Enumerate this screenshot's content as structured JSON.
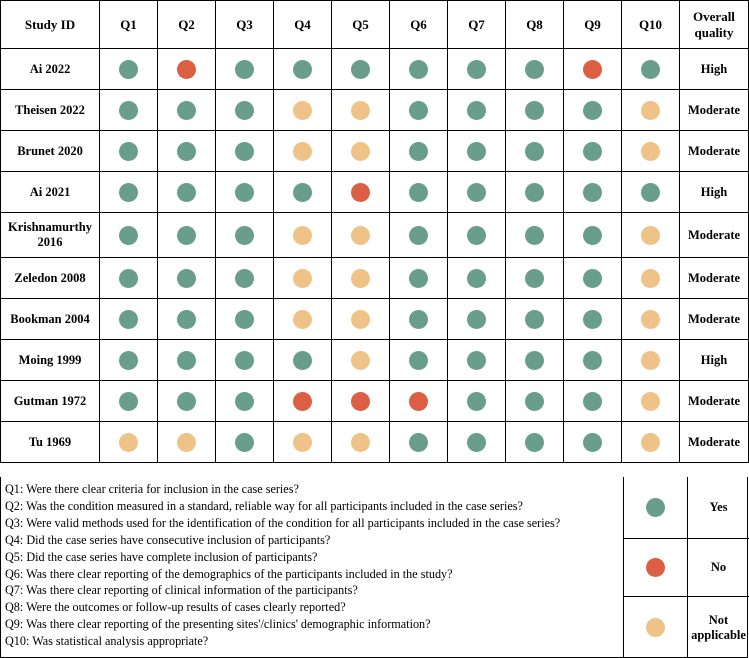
{
  "colors": {
    "yes": "#6a9e8c",
    "no": "#dd5f43",
    "na": "#efc387"
  },
  "table": {
    "headers": [
      "Study ID",
      "Q1",
      "Q2",
      "Q3",
      "Q4",
      "Q5",
      "Q6",
      "Q7",
      "Q8",
      "Q9",
      "Q10",
      "Overall quality"
    ],
    "rows": [
      {
        "study": "Ai 2022",
        "ratings": [
          "yes",
          "no",
          "yes",
          "yes",
          "yes",
          "yes",
          "yes",
          "yes",
          "no",
          "yes"
        ],
        "quality": "High"
      },
      {
        "study": "Theisen 2022",
        "ratings": [
          "yes",
          "yes",
          "yes",
          "na",
          "na",
          "yes",
          "yes",
          "yes",
          "yes",
          "na"
        ],
        "quality": "Moderate"
      },
      {
        "study": "Brunet 2020",
        "ratings": [
          "yes",
          "yes",
          "yes",
          "na",
          "na",
          "yes",
          "yes",
          "yes",
          "yes",
          "na"
        ],
        "quality": "Moderate"
      },
      {
        "study": "Ai 2021",
        "ratings": [
          "yes",
          "yes",
          "yes",
          "yes",
          "no",
          "yes",
          "yes",
          "yes",
          "yes",
          "yes"
        ],
        "quality": "High"
      },
      {
        "study": "Krishnamurthy 2016",
        "ratings": [
          "yes",
          "yes",
          "yes",
          "na",
          "na",
          "yes",
          "yes",
          "yes",
          "yes",
          "na"
        ],
        "quality": "Moderate"
      },
      {
        "study": "Zeledon 2008",
        "ratings": [
          "yes",
          "yes",
          "yes",
          "na",
          "na",
          "yes",
          "yes",
          "yes",
          "yes",
          "na"
        ],
        "quality": "Moderate"
      },
      {
        "study": "Bookman 2004",
        "ratings": [
          "yes",
          "yes",
          "yes",
          "na",
          "na",
          "yes",
          "yes",
          "yes",
          "yes",
          "na"
        ],
        "quality": "Moderate"
      },
      {
        "study": "Moing 1999",
        "ratings": [
          "yes",
          "yes",
          "yes",
          "yes",
          "na",
          "yes",
          "yes",
          "yes",
          "yes",
          "na"
        ],
        "quality": "High"
      },
      {
        "study": "Gutman 1972",
        "ratings": [
          "yes",
          "yes",
          "yes",
          "no",
          "no",
          "no",
          "yes",
          "yes",
          "yes",
          "na"
        ],
        "quality": "Moderate"
      },
      {
        "study": "Tu 1969",
        "ratings": [
          "na",
          "na",
          "yes",
          "na",
          "na",
          "yes",
          "yes",
          "yes",
          "yes",
          "na"
        ],
        "quality": "Moderate"
      }
    ]
  },
  "questions": [
    "Q1: Were there clear criteria for inclusion in the case series?",
    "Q2: Was the condition measured in a standard, reliable way for all participants included in the case series?",
    "Q3: Were valid methods used for the identification of the condition for all participants included in the case series?",
    "Q4: Did the case series have consecutive inclusion of participants?",
    "Q5: Did the case series have complete inclusion of participants?",
    "Q6: Was there clear reporting of the demographics of the participants included in the study?",
    "Q7: Was there clear reporting of clinical information of the participants?",
    "Q8: Were the outcomes or follow-up results of cases clearly reported?",
    "Q9: Was there clear reporting of the presenting sites'/clinics' demographic information?",
    "Q10: Was statistical analysis appropriate?"
  ],
  "legend": [
    {
      "key": "yes",
      "label": "Yes"
    },
    {
      "key": "no",
      "label": "No"
    },
    {
      "key": "na",
      "label": "Not applicable"
    }
  ]
}
